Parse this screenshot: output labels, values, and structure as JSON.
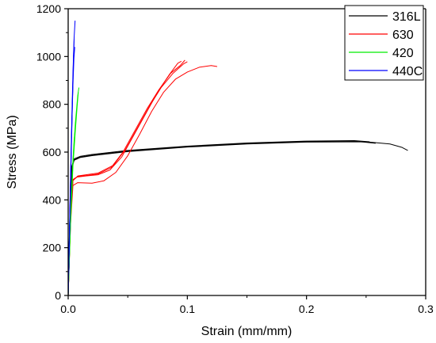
{
  "chart_data": {
    "type": "line",
    "xlabel": "Strain (mm/mm)",
    "ylabel": "Stress (MPa)",
    "xlim": [
      0,
      0.3
    ],
    "ylim": [
      0,
      1200
    ],
    "x_ticks": [
      "0.0",
      "0.1",
      "0.2",
      "0.3"
    ],
    "y_ticks": [
      "0",
      "200",
      "400",
      "600",
      "800",
      "1000",
      "1200"
    ],
    "grid": false,
    "legend_position": "top-right",
    "legend": [
      {
        "label": "316L",
        "color": "#000000"
      },
      {
        "label": "630",
        "color": "#ff0000"
      },
      {
        "label": "420",
        "color": "#00ee00"
      },
      {
        "label": "440C",
        "color": "#0000ff"
      }
    ],
    "series": [
      {
        "name": "316L",
        "color": "#000000",
        "points": [
          [
            0,
            0
          ],
          [
            0.0015,
            350
          ],
          [
            0.003,
            540
          ],
          [
            0.005,
            572
          ],
          [
            0.01,
            582
          ],
          [
            0.02,
            590
          ],
          [
            0.05,
            607
          ],
          [
            0.1,
            625
          ],
          [
            0.15,
            638
          ],
          [
            0.2,
            646
          ],
          [
            0.24,
            648
          ],
          [
            0.253,
            643
          ]
        ]
      },
      {
        "name": "316L",
        "color": "#000000",
        "points": [
          [
            0,
            0
          ],
          [
            0.0015,
            345
          ],
          [
            0.003,
            535
          ],
          [
            0.005,
            568
          ],
          [
            0.01,
            579
          ],
          [
            0.02,
            587
          ],
          [
            0.05,
            604
          ],
          [
            0.1,
            623
          ],
          [
            0.15,
            636
          ],
          [
            0.2,
            644
          ],
          [
            0.24,
            646
          ],
          [
            0.258,
            637
          ]
        ]
      },
      {
        "name": "316L",
        "color": "#000000",
        "points": [
          [
            0,
            0
          ],
          [
            0.0015,
            340
          ],
          [
            0.003,
            530
          ],
          [
            0.005,
            566
          ],
          [
            0.01,
            577
          ],
          [
            0.02,
            585
          ],
          [
            0.05,
            602
          ],
          [
            0.1,
            621
          ],
          [
            0.15,
            634
          ],
          [
            0.2,
            642
          ],
          [
            0.25,
            643
          ],
          [
            0.27,
            634
          ],
          [
            0.28,
            620
          ],
          [
            0.285,
            607
          ]
        ]
      },
      {
        "name": "630",
        "color": "#ff0000",
        "points": [
          [
            0,
            0
          ],
          [
            0.002,
            330
          ],
          [
            0.004,
            485
          ],
          [
            0.007,
            495
          ],
          [
            0.015,
            500
          ],
          [
            0.025,
            505
          ],
          [
            0.035,
            525
          ],
          [
            0.045,
            580
          ],
          [
            0.055,
            670
          ],
          [
            0.065,
            760
          ],
          [
            0.075,
            850
          ],
          [
            0.085,
            925
          ],
          [
            0.092,
            972
          ],
          [
            0.095,
            980
          ]
        ]
      },
      {
        "name": "630",
        "color": "#ff0000",
        "points": [
          [
            0,
            0
          ],
          [
            0.002,
            320
          ],
          [
            0.004,
            480
          ],
          [
            0.008,
            500
          ],
          [
            0.015,
            505
          ],
          [
            0.025,
            512
          ],
          [
            0.038,
            545
          ],
          [
            0.048,
            610
          ],
          [
            0.058,
            700
          ],
          [
            0.068,
            790
          ],
          [
            0.078,
            870
          ],
          [
            0.088,
            930
          ],
          [
            0.097,
            970
          ],
          [
            0.1,
            978
          ]
        ]
      },
      {
        "name": "630",
        "color": "#ff0000",
        "points": [
          [
            0,
            0
          ],
          [
            0.002,
            300
          ],
          [
            0.004,
            460
          ],
          [
            0.008,
            472
          ],
          [
            0.02,
            470
          ],
          [
            0.03,
            480
          ],
          [
            0.04,
            515
          ],
          [
            0.05,
            585
          ],
          [
            0.06,
            675
          ],
          [
            0.07,
            770
          ],
          [
            0.08,
            850
          ],
          [
            0.09,
            905
          ],
          [
            0.1,
            935
          ],
          [
            0.11,
            955
          ],
          [
            0.12,
            962
          ],
          [
            0.125,
            958
          ]
        ]
      },
      {
        "name": "630",
        "color": "#ff0000",
        "points": [
          [
            0,
            0
          ],
          [
            0.002,
            325
          ],
          [
            0.004,
            482
          ],
          [
            0.008,
            498
          ],
          [
            0.015,
            502
          ],
          [
            0.025,
            508
          ],
          [
            0.036,
            535
          ],
          [
            0.046,
            600
          ],
          [
            0.056,
            690
          ],
          [
            0.066,
            780
          ],
          [
            0.076,
            860
          ],
          [
            0.086,
            930
          ],
          [
            0.094,
            962
          ],
          [
            0.098,
            985
          ]
        ]
      },
      {
        "name": "420",
        "color": "#00ee00",
        "points": [
          [
            0,
            0
          ],
          [
            0.002,
            320
          ],
          [
            0.004,
            560
          ],
          [
            0.006,
            720
          ],
          [
            0.008,
            835
          ],
          [
            0.009,
            870
          ]
        ]
      },
      {
        "name": "420",
        "color": "#00ee00",
        "points": [
          [
            0,
            0
          ],
          [
            0.002,
            300
          ],
          [
            0.004,
            540
          ],
          [
            0.006,
            690
          ],
          [
            0.0075,
            790
          ],
          [
            0.0085,
            850
          ]
        ]
      },
      {
        "name": "420",
        "color": "#00ee00",
        "points": [
          [
            0,
            0
          ],
          [
            0.002,
            330
          ],
          [
            0.0035,
            520
          ],
          [
            0.005,
            650
          ],
          [
            0.006,
            705
          ]
        ]
      },
      {
        "name": "440C",
        "color": "#0000ff",
        "points": [
          [
            0,
            0
          ],
          [
            0.001,
            250
          ],
          [
            0.002,
            500
          ],
          [
            0.003,
            730
          ],
          [
            0.004,
            930
          ],
          [
            0.005,
            1080
          ],
          [
            0.0058,
            1150
          ]
        ]
      },
      {
        "name": "440C",
        "color": "#0000ff",
        "points": [
          [
            0,
            0
          ],
          [
            0.001,
            245
          ],
          [
            0.002,
            490
          ],
          [
            0.003,
            710
          ],
          [
            0.004,
            900
          ],
          [
            0.0045,
            1000
          ],
          [
            0.005,
            1075
          ]
        ]
      },
      {
        "name": "440C",
        "color": "#0000ff",
        "points": [
          [
            0,
            0
          ],
          [
            0.001,
            240
          ],
          [
            0.002,
            480
          ],
          [
            0.003,
            700
          ],
          [
            0.004,
            880
          ],
          [
            0.0048,
            990
          ],
          [
            0.0055,
            1040
          ]
        ]
      },
      {
        "name": "440C",
        "color": "#0000ff",
        "points": [
          [
            0,
            0
          ],
          [
            0.001,
            230
          ],
          [
            0.002,
            460
          ],
          [
            0.003,
            680
          ],
          [
            0.0035,
            800
          ],
          [
            0.004,
            900
          ]
        ]
      }
    ]
  }
}
